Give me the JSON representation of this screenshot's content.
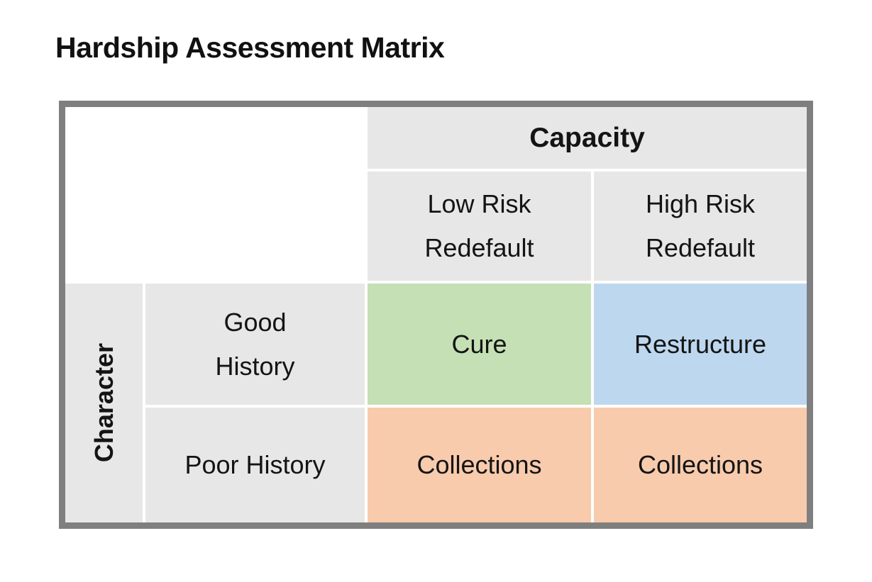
{
  "page": {
    "title": "Hardship Assessment Matrix"
  },
  "matrix": {
    "column_group_label": "Capacity",
    "row_group_label": "Character",
    "column_headers": [
      "Low Risk Redefault",
      "High Risk Redefault"
    ],
    "row_headers": [
      "Good History",
      "Poor History"
    ],
    "cells": [
      {
        "row": "Good History",
        "column": "Low Risk Redefault",
        "label": "Cure",
        "color": "#C5E0B4"
      },
      {
        "row": "Good History",
        "column": "High Risk Redefault",
        "label": "Restructure",
        "color": "#BDD7EE"
      },
      {
        "row": "Poor History",
        "column": "Low Risk Redefault",
        "label": "Collections",
        "color": "#F8CBAD"
      },
      {
        "row": "Poor History",
        "column": "High Risk Redefault",
        "label": "Collections",
        "color": "#F8CBAD"
      }
    ],
    "colors": {
      "header_bg": "#E7E7E7",
      "border": "#7F7F7F",
      "gap": "#FFFFFF",
      "text": "#141414",
      "green": "#C5E0B4",
      "blue": "#BDD7EE",
      "orange": "#F8CBAD"
    }
  }
}
